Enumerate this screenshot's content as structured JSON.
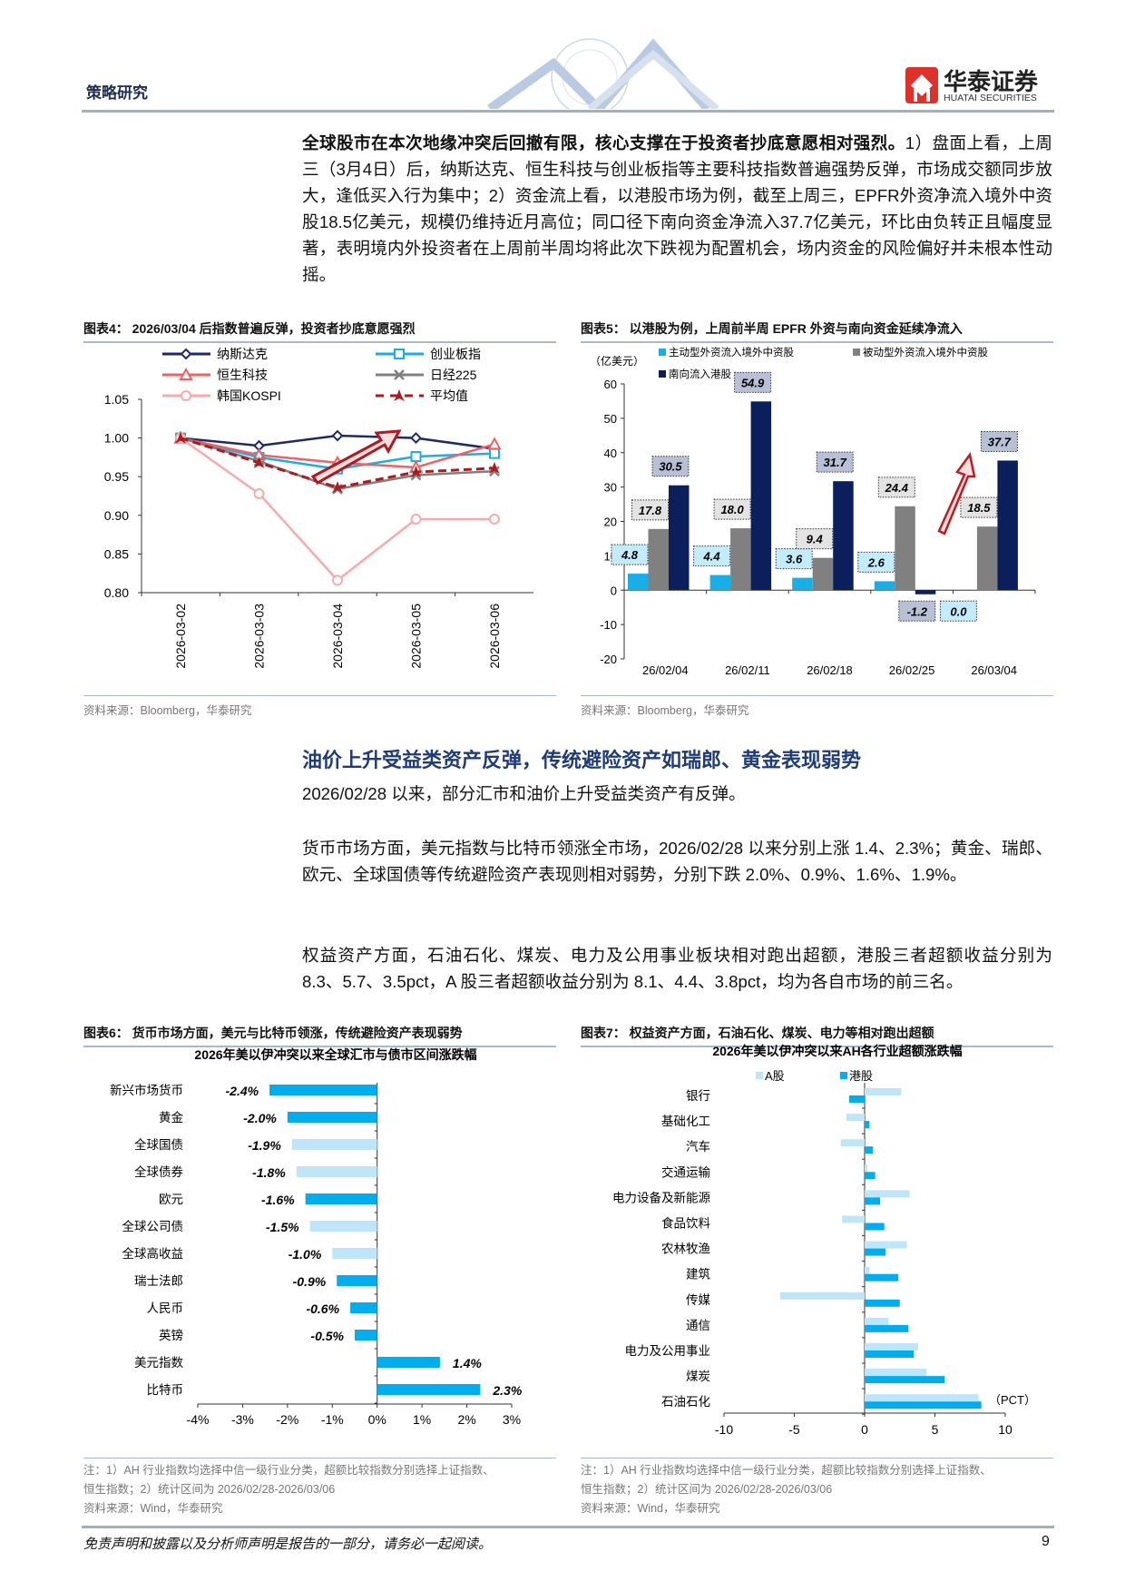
{
  "header": {
    "section": "策略研究",
    "brand_cn": "华泰证券",
    "brand_en": "HUATAI SECURITIES",
    "brand_color": "#e0302a"
  },
  "intro": {
    "bold": "全球股市在本次地缘冲突后回撤有限，核心支撑在于投资者抄底意愿相对强烈。",
    "text": "1）盘面上看，上周三（3月4日）后，纳斯达克、恒生科技与创业板指等主要科技指数普遍强势反弹，市场成交额同步放大，逢低买入行为集中；2）资金流上看，以港股市场为例，截至上周三，EPFR外资净流入境外中资股18.5亿美元，规模仍维持近月高位；同口径下南向资金净流入37.7亿美元，环比由负转正且幅度显著，表明境内外投资者在上周前半周均将此次下跌视为配置机会，场内资金的风险偏好并未根本性动摇。"
  },
  "fig4": {
    "title": "图表4：  2026/03/04 后指数普遍反弹，投资者抄底意愿强烈",
    "source": "资料来源：Bloomberg，华泰研究"
  },
  "fig5": {
    "title": "图表5：  以港股为例，上周前半周 EPFR 外资与南向资金延续净流入",
    "source": "资料来源：Bloomberg，华泰研究"
  },
  "section": {
    "heading": "油价上升受益类资产反弹，传统避险资产如瑞郎、黄金表现弱势",
    "p1": "2026/02/28 以来，部分汇市和油价上升受益类资产有反弹。",
    "p2": "货币市场方面，美元指数与比特币领涨全市场，2026/02/28 以来分别上涨 1.4、2.3%；黄金、瑞郎、欧元、全球国债等传统避险资产表现则相对弱势，分别下跌 2.0%、0.9%、1.6%、1.9%。",
    "p3": "权益资产方面，石油石化、煤炭、电力及公用事业板块相对跑出超额，港股三者超额收益分别为 8.3、5.7、3.5pct，A 股三者超额收益分别为 8.1、4.4、3.8pct，均为各自市场的前三名。"
  },
  "fig6": {
    "title": "图表6：  货币市场方面，美元与比特币领涨，传统避险资产表现弱势"
  },
  "fig7": {
    "title": "图表7：  权益资产方面，石油石化、煤炭、电力等相对跑出超额",
    "note1": "注：1）AH 行业指数均选择中信一级行业分类，超额比较指数分别选择上证指数、",
    "note2": "恒生指数；2）统计区间为 2026/02/28-2026/03/06",
    "source": "资料来源：Wind，华泰研究"
  },
  "fig6_notes": {
    "note1": "注：1）AH 行业指数均选择中信一级行业分类，超额比较指数分别选择上证指数、",
    "note2": "恒生指数；2）统计区间为 2026/02/28-2026/03/06",
    "source": "资料来源：Wind，华泰研究"
  },
  "footer": {
    "disclaimer": "免责声明和披露以及分析师声明是报告的一部分，请务必一起阅读。",
    "page": "9"
  },
  "chart_data": [
    {
      "type": "line",
      "title": "",
      "x": [
        "2026-03-02",
        "2026-03-03",
        "2026-03-04",
        "2026-03-05",
        "2026-03-06"
      ],
      "ylim": [
        0.8,
        1.05
      ],
      "yticks": [
        "0.80",
        "0.85",
        "0.90",
        "0.95",
        "1.00",
        "1.05"
      ],
      "series": [
        {
          "name": "纳斯达克",
          "color": "#1b2a6b",
          "marker": "diamond",
          "values": [
            1.0,
            0.99,
            1.003,
            1.0,
            0.986
          ]
        },
        {
          "name": "创业板指",
          "color": "#18aee8",
          "marker": "square",
          "values": [
            1.0,
            0.975,
            0.96,
            0.976,
            0.98
          ]
        },
        {
          "name": "恒生科技",
          "color": "#f4605f",
          "marker": "triangle",
          "values": [
            1.0,
            0.978,
            0.968,
            0.962,
            0.992
          ]
        },
        {
          "name": "日经225",
          "color": "#808080",
          "marker": "x",
          "values": [
            1.0,
            0.97,
            0.934,
            0.952,
            0.957
          ]
        },
        {
          "name": "韩国KOSPI",
          "color": "#f9a9a9",
          "marker": "circle",
          "values": [
            1.0,
            0.928,
            0.816,
            0.895,
            0.895
          ]
        },
        {
          "name": "平均值",
          "color": "#b0191e",
          "marker": "star",
          "dashed": true,
          "values": [
            1.0,
            0.968,
            0.936,
            0.956,
            0.961
          ]
        }
      ]
    },
    {
      "type": "bar",
      "unit": "（亿美元）",
      "categories": [
        "26/02/04",
        "26/02/11",
        "26/02/18",
        "26/02/25",
        "26/03/04"
      ],
      "ylim": [
        -20,
        60
      ],
      "yticks": [
        "-20",
        "-10",
        "0",
        "10",
        "20",
        "30",
        "40",
        "50",
        "60"
      ],
      "series": [
        {
          "name": "主动型外资流入境外中资股",
          "color": "#18aee8",
          "label_bg": "#c3ecfb",
          "values": [
            4.8,
            4.4,
            3.6,
            2.6,
            0.0
          ]
        },
        {
          "name": "被动型外资流入境外中资股",
          "color": "#808080",
          "label_bg": "#e3e3e3",
          "values": [
            17.8,
            18.0,
            9.4,
            24.4,
            18.5
          ]
        },
        {
          "name": "南向流入港股",
          "color": "#0a1f5c",
          "label_bg": "#b7c0d4",
          "values": [
            30.5,
            54.9,
            31.7,
            -1.2,
            37.7
          ]
        }
      ]
    },
    {
      "type": "bar",
      "orientation": "horizontal",
      "title": "2026年美以伊冲突以来全球汇市与债市区间涨跌幅",
      "xlim": [
        -4,
        3
      ],
      "xticks": [
        "-4%",
        "-3%",
        "-2%",
        "-1%",
        "0%",
        "1%",
        "2%",
        "3%"
      ],
      "categories": [
        "新兴市场货币",
        "黄金",
        "全球国债",
        "全球债券",
        "欧元",
        "全球公司债",
        "全球高收益",
        "瑞士法郎",
        "人民币",
        "英镑",
        "美元指数",
        "比特币"
      ],
      "values": [
        -2.4,
        -2.0,
        -1.9,
        -1.8,
        -1.6,
        -1.5,
        -1.0,
        -0.9,
        -0.6,
        -0.5,
        1.4,
        2.3
      ],
      "labels": [
        "-2.4%",
        "-2.0%",
        "-1.9%",
        "-1.8%",
        "-1.6%",
        "-1.5%",
        "-1.0%",
        "-0.9%",
        "-0.6%",
        "-0.5%",
        "1.4%",
        "2.3%"
      ],
      "bar_colors": [
        "#00aeef",
        "#00aeef",
        "#bfe5f8",
        "#bfe5f8",
        "#00aeef",
        "#bfe5f8",
        "#bfe5f8",
        "#00aeef",
        "#00aeef",
        "#00aeef",
        "#00aeef",
        "#00aeef"
      ]
    },
    {
      "type": "bar",
      "orientation": "horizontal",
      "title": "2026年美以伊冲突以来AH各行业超额涨跌幅",
      "unit": "（PCT）",
      "xlim": [
        -10,
        10
      ],
      "xticks": [
        "-10",
        "-5",
        "0",
        "5",
        "10"
      ],
      "categories": [
        "银行",
        "基础化工",
        "汽车",
        "交通运输",
        "电力设备及新能源",
        "食品饮料",
        "农林牧渔",
        "建筑",
        "传媒",
        "通信",
        "电力及公用事业",
        "煤炭",
        "石油石化"
      ],
      "series": [
        {
          "name": "A股",
          "color": "#bfe5f8",
          "values": [
            2.6,
            -1.3,
            -1.7,
            0.2,
            3.2,
            -1.6,
            3.0,
            0.35,
            -6.0,
            1.7,
            3.8,
            4.4,
            8.1
          ]
        },
        {
          "name": "港股",
          "color": "#00aeef",
          "values": [
            -1.1,
            0.35,
            0.6,
            0.75,
            1.1,
            1.4,
            1.5,
            2.4,
            2.5,
            3.1,
            3.5,
            5.7,
            8.3
          ]
        }
      ]
    }
  ]
}
